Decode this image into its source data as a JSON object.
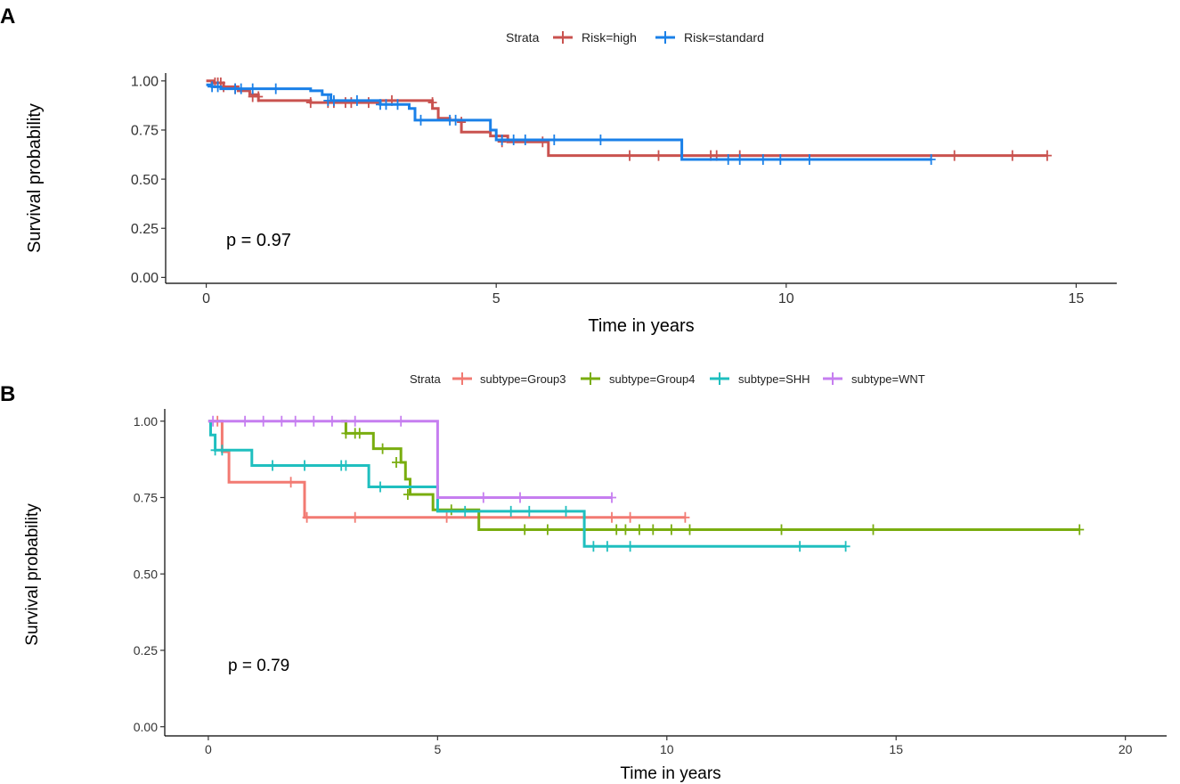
{
  "panels": [
    {
      "label": "A"
    },
    {
      "label": "B"
    }
  ],
  "chart_data": [
    {
      "type": "line",
      "subtype": "kaplan-meier",
      "panel": "A",
      "title": "",
      "xlabel": "Time in years",
      "ylabel": "Survival probability",
      "xlim": [
        -0.7,
        15.7
      ],
      "ylim": [
        -0.03,
        1.04
      ],
      "xticks": [
        0,
        5,
        10,
        15
      ],
      "xtick_labels": [
        "0",
        "5",
        "10",
        "15"
      ],
      "yticks": [
        0,
        0.25,
        0.5,
        0.75,
        1
      ],
      "ytick_labels": [
        "0.00",
        "0.25",
        "0.50",
        "0.75",
        "1.00"
      ],
      "legend_title": "Strata",
      "legend_position": "top",
      "annotation": "p = 0.97",
      "grid": false,
      "series": [
        {
          "name": "Risk=high",
          "color": "#c9524f",
          "x": [
            0,
            0.12,
            0.3,
            0.55,
            0.75,
            0.9,
            1.8,
            2.6,
            3.0,
            3.9,
            4.0,
            4.2,
            4.4,
            4.9,
            5.2,
            5.9,
            14.5
          ],
          "y": [
            1.0,
            0.99,
            0.97,
            0.95,
            0.93,
            0.9,
            0.89,
            0.89,
            0.9,
            0.86,
            0.81,
            0.8,
            0.74,
            0.72,
            0.69,
            0.62,
            0.62
          ],
          "censor_x": [
            0.15,
            0.2,
            0.25,
            0.3,
            0.5,
            0.8,
            0.9,
            1.8,
            2.1,
            2.2,
            2.4,
            2.5,
            2.8,
            3.2,
            3.9,
            4.4,
            5.1,
            5.8,
            7.3,
            7.8,
            8.7,
            8.8,
            9.2,
            12.9,
            13.9,
            14.5
          ],
          "censor_y": [
            0.99,
            0.99,
            0.99,
            0.97,
            0.96,
            0.92,
            0.92,
            0.89,
            0.89,
            0.89,
            0.89,
            0.89,
            0.89,
            0.9,
            0.89,
            0.79,
            0.69,
            0.69,
            0.62,
            0.62,
            0.62,
            0.62,
            0.62,
            0.62,
            0.62,
            0.62
          ]
        },
        {
          "name": "Risk=standard",
          "color": "#1a80e8",
          "x": [
            0,
            0.1,
            0.25,
            0.5,
            1.8,
            2.0,
            2.15,
            2.9,
            3.0,
            3.5,
            3.6,
            4.3,
            4.9,
            5.0,
            8.2,
            12.5
          ],
          "y": [
            0.98,
            0.97,
            0.96,
            0.96,
            0.95,
            0.93,
            0.9,
            0.9,
            0.88,
            0.86,
            0.8,
            0.8,
            0.75,
            0.7,
            0.6,
            0.6
          ],
          "censor_x": [
            0.1,
            0.2,
            0.5,
            0.6,
            0.8,
            1.2,
            2.1,
            2.2,
            2.6,
            3.0,
            3.1,
            3.3,
            3.7,
            4.2,
            4.3,
            5.1,
            5.3,
            5.5,
            6.0,
            6.8,
            9.0,
            9.2,
            9.6,
            9.9,
            10.4,
            12.5
          ],
          "censor_y": [
            0.97,
            0.97,
            0.96,
            0.96,
            0.96,
            0.96,
            0.9,
            0.9,
            0.9,
            0.88,
            0.88,
            0.88,
            0.8,
            0.8,
            0.8,
            0.7,
            0.7,
            0.7,
            0.7,
            0.7,
            0.6,
            0.6,
            0.6,
            0.6,
            0.6,
            0.6
          ]
        }
      ]
    },
    {
      "type": "line",
      "subtype": "kaplan-meier",
      "panel": "B",
      "title": "",
      "xlabel": "Time in years",
      "ylabel": "Survival probability",
      "xlim": [
        -0.95,
        20.9
      ],
      "ylim": [
        -0.03,
        1.04
      ],
      "xticks": [
        0,
        5,
        10,
        15,
        20
      ],
      "xtick_labels": [
        "0",
        "5",
        "10",
        "15",
        "20"
      ],
      "yticks": [
        0,
        0.25,
        0.5,
        0.75,
        1
      ],
      "ytick_labels": [
        "0.00",
        "0.25",
        "0.50",
        "0.75",
        "1.00"
      ],
      "legend_title": "Strata",
      "legend_position": "top",
      "annotation": "p = 0.79",
      "grid": false,
      "series": [
        {
          "name": "subtype=Group3",
          "color": "#f27a72",
          "x": [
            0,
            0.3,
            0.45,
            2.1,
            10.4
          ],
          "y": [
            1.0,
            0.9,
            0.8,
            0.685,
            0.685
          ],
          "censor_x": [
            0.2,
            1.8,
            2.15,
            3.2,
            5.2,
            8.8,
            9.2,
            10.4
          ],
          "censor_y": [
            1.0,
            0.8,
            0.685,
            0.685,
            0.685,
            0.685,
            0.685,
            0.685
          ]
        },
        {
          "name": "subtype=Group4",
          "color": "#79ad0f",
          "x": [
            2.9,
            3.0,
            3.45,
            3.6,
            3.9,
            4.2,
            4.3,
            4.4,
            4.9,
            5.9,
            19.0
          ],
          "y": [
            1.0,
            0.96,
            0.96,
            0.91,
            0.91,
            0.865,
            0.81,
            0.76,
            0.71,
            0.645,
            0.645
          ],
          "censor_x": [
            3.0,
            3.2,
            3.3,
            3.8,
            4.1,
            4.35,
            5.3,
            6.9,
            7.4,
            8.9,
            9.1,
            9.4,
            9.7,
            10.1,
            10.5,
            12.5,
            14.5,
            19.0
          ],
          "censor_y": [
            0.96,
            0.96,
            0.96,
            0.91,
            0.865,
            0.76,
            0.71,
            0.645,
            0.645,
            0.645,
            0.645,
            0.645,
            0.645,
            0.645,
            0.645,
            0.645,
            0.645,
            0.645
          ]
        },
        {
          "name": "subtype=SHH",
          "color": "#1fbfbf",
          "x": [
            0,
            0.05,
            0.15,
            0.95,
            3.5,
            5.0,
            8.2,
            13.9
          ],
          "y": [
            1.0,
            0.955,
            0.905,
            0.855,
            0.785,
            0.705,
            0.59,
            0.59
          ],
          "censor_x": [
            0.15,
            0.3,
            1.4,
            2.1,
            2.9,
            3.0,
            3.75,
            5.6,
            6.6,
            7.0,
            7.8,
            8.4,
            8.7,
            9.2,
            12.9,
            13.9
          ],
          "censor_y": [
            0.905,
            0.905,
            0.855,
            0.855,
            0.855,
            0.855,
            0.785,
            0.705,
            0.705,
            0.705,
            0.705,
            0.59,
            0.59,
            0.59,
            0.59,
            0.59
          ]
        },
        {
          "name": "subtype=WNT",
          "color": "#c67ef0",
          "x": [
            0,
            5.0,
            8.8
          ],
          "y": [
            1.0,
            0.75,
            0.75
          ],
          "censor_x": [
            0.1,
            0.8,
            1.2,
            1.6,
            1.9,
            2.3,
            2.7,
            3.2,
            4.2,
            6.0,
            6.8,
            8.8
          ],
          "censor_y": [
            1.0,
            1.0,
            1.0,
            1.0,
            1.0,
            1.0,
            1.0,
            1.0,
            1.0,
            0.75,
            0.75,
            0.75
          ]
        }
      ]
    }
  ]
}
